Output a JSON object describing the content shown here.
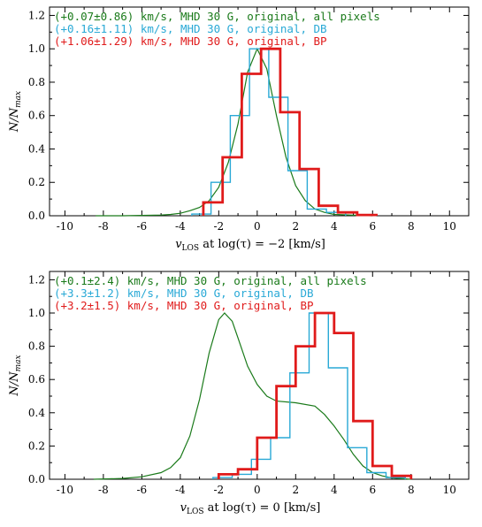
{
  "chart_data": [
    {
      "type": "line",
      "xlabel": "v_LOS at log(τ) = −2 [km/s]",
      "xlabel_parts": {
        "v": "v",
        "sub": "LOS",
        "rest": " at log(τ) = −2 [km/s]"
      },
      "ylabel": "N/N_max",
      "ylabel_parts": {
        "main": "N/N",
        "sub": "max"
      },
      "xlim": [
        -10.8,
        11
      ],
      "ylim": [
        0,
        1.25
      ],
      "xticks": [
        -10,
        -8,
        -6,
        -4,
        -2,
        0,
        2,
        4,
        6,
        8,
        10
      ],
      "yticks": [
        0.0,
        0.2,
        0.4,
        0.6,
        0.8,
        1.0,
        1.2
      ],
      "legend": [
        {
          "text": "(+0.07±0.86) km/s, MHD 30 G, original, all pixels",
          "color": "#1a7a1a"
        },
        {
          "text": "(+0.16±1.11) km/s, MHD 30 G, original, DB",
          "color": "#29a9d6"
        },
        {
          "text": "(+1.06±1.29) km/s, MHD 30 G, original, BP",
          "color": "#e01b1b"
        }
      ],
      "series": [
        {
          "kind": "curve",
          "color": "#1a7a1a",
          "x": [
            -8.4,
            -7,
            -6,
            -5,
            -4.5,
            -4,
            -3.5,
            -3,
            -2.5,
            -2,
            -1.5,
            -1,
            -0.5,
            0,
            0.5,
            1,
            1.5,
            2,
            2.5,
            3,
            3.5,
            4,
            5,
            6
          ],
          "y": [
            0,
            0,
            0.002,
            0.004,
            0.008,
            0.015,
            0.03,
            0.05,
            0.09,
            0.17,
            0.32,
            0.55,
            0.86,
            1.0,
            0.88,
            0.6,
            0.35,
            0.18,
            0.09,
            0.04,
            0.02,
            0.008,
            0.003,
            0
          ]
        },
        {
          "kind": "step",
          "color": "#29a9d6",
          "edges": [
            -3.4,
            -2.4,
            -1.4,
            -0.4,
            0.6,
            1.6,
            2.6,
            3.6,
            4.6
          ],
          "y": [
            0.01,
            0.2,
            0.6,
            1.0,
            0.71,
            0.27,
            0.04,
            0.02
          ]
        },
        {
          "kind": "step",
          "color": "#e01b1b",
          "edges": [
            -2.8,
            -1.8,
            -0.8,
            0.2,
            1.2,
            2.2,
            3.2,
            4.2,
            5.2,
            6.2
          ],
          "y": [
            0.08,
            0.35,
            0.85,
            1.0,
            0.62,
            0.28,
            0.06,
            0.02,
            0.005
          ]
        }
      ]
    },
    {
      "type": "line",
      "xlabel": "v_LOS at log(τ) = 0 [km/s]",
      "xlabel_parts": {
        "v": "v",
        "sub": "LOS",
        "rest": " at log(τ) = 0 [km/s]"
      },
      "ylabel": "N/N_max",
      "ylabel_parts": {
        "main": "N/N",
        "sub": "max"
      },
      "xlim": [
        -10.8,
        11
      ],
      "ylim": [
        0,
        1.25
      ],
      "xticks": [
        -10,
        -8,
        -6,
        -4,
        -2,
        0,
        2,
        4,
        6,
        8,
        10
      ],
      "yticks": [
        0.0,
        0.2,
        0.4,
        0.6,
        0.8,
        1.0,
        1.2
      ],
      "legend": [
        {
          "text": "(+0.1±2.4) km/s, MHD 30 G, original, all pixels",
          "color": "#1a7a1a"
        },
        {
          "text": "(+3.3±1.2) km/s, MHD 30 G, original, DB",
          "color": "#29a9d6"
        },
        {
          "text": "(+3.2±1.5) km/s, MHD 30 G, original, BP",
          "color": "#e01b1b"
        }
      ],
      "series": [
        {
          "kind": "curve",
          "color": "#1a7a1a",
          "x": [
            -8.5,
            -7,
            -6,
            -5,
            -4.5,
            -4,
            -3.5,
            -3,
            -2.5,
            -2,
            -1.7,
            -1.3,
            -1,
            -0.5,
            0,
            0.5,
            1,
            2,
            3,
            3.5,
            4,
            4.5,
            5,
            5.5,
            6,
            6.5,
            7,
            8
          ],
          "y": [
            0,
            0.005,
            0.015,
            0.04,
            0.07,
            0.13,
            0.26,
            0.48,
            0.76,
            0.96,
            1.0,
            0.95,
            0.85,
            0.68,
            0.57,
            0.5,
            0.47,
            0.46,
            0.44,
            0.39,
            0.32,
            0.24,
            0.15,
            0.08,
            0.04,
            0.02,
            0.008,
            0
          ]
        },
        {
          "kind": "step",
          "color": "#29a9d6",
          "edges": [
            -2.3,
            -1.3,
            -0.3,
            0.7,
            1.7,
            2.7,
            3.7,
            4.7,
            5.7,
            6.7,
            7.7
          ],
          "y": [
            0.01,
            0.03,
            0.12,
            0.25,
            0.64,
            1.0,
            0.67,
            0.19,
            0.04,
            0.01
          ]
        },
        {
          "kind": "step",
          "color": "#e01b1b",
          "edges": [
            -2,
            -1,
            0,
            1,
            2,
            3,
            4,
            5,
            6,
            7,
            8
          ],
          "y": [
            0.03,
            0.06,
            0.25,
            0.56,
            0.8,
            1.0,
            0.88,
            0.35,
            0.08,
            0.02
          ]
        }
      ]
    }
  ]
}
